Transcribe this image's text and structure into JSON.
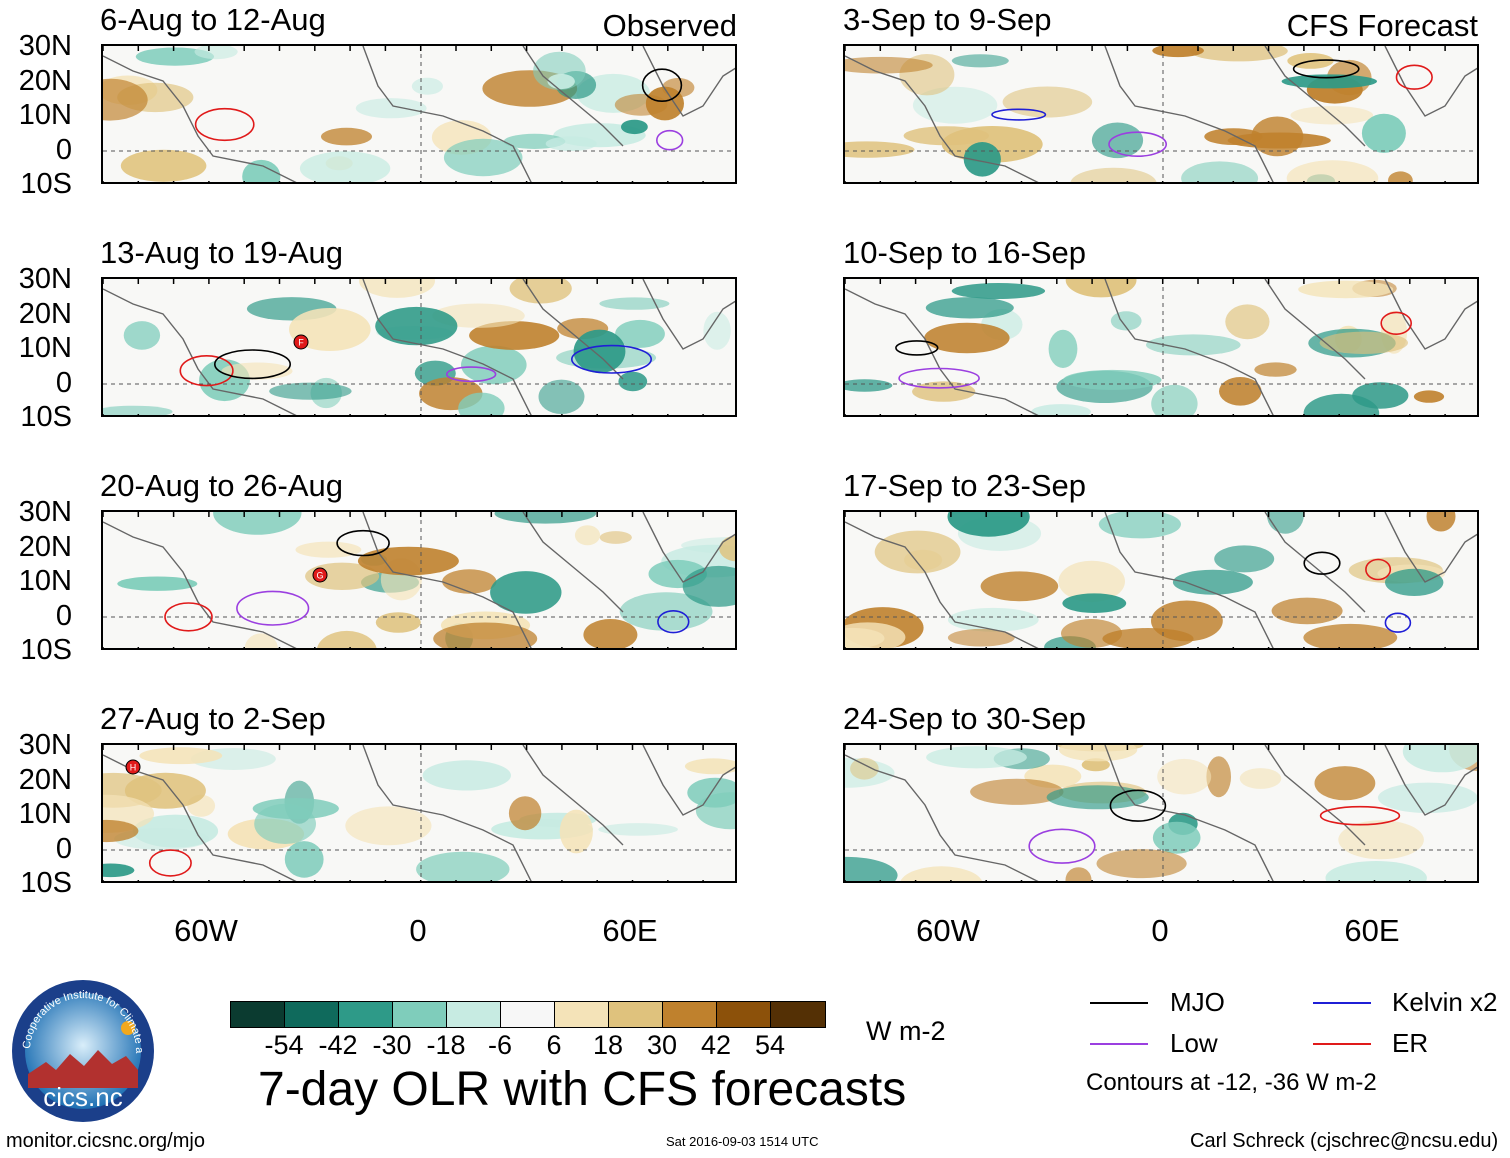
{
  "figure": {
    "title": "7-day OLR with CFS forecasts",
    "observed_label": "Observed",
    "forecast_label": "CFS Forecast",
    "lat_labels": [
      "30N",
      "20N",
      "10N",
      "0",
      "10S"
    ],
    "lon_labels": [
      "60W",
      "0",
      "60E"
    ]
  },
  "panels": [
    {
      "title": "6-Aug to 12-Aug"
    },
    {
      "title": "13-Aug to 19-Aug"
    },
    {
      "title": "20-Aug to 26-Aug"
    },
    {
      "title": "27-Aug to 2-Sep"
    },
    {
      "title": "3-Sep to 9-Sep"
    },
    {
      "title": "10-Sep to 16-Sep"
    },
    {
      "title": "17-Sep to 23-Sep"
    },
    {
      "title": "24-Sep to 30-Sep"
    }
  ],
  "storm_markers": [
    "F",
    "G",
    "H"
  ],
  "colorbar": {
    "units": "W m-2",
    "ticks": [
      "-54",
      "-42",
      "-30",
      "-18",
      "-6",
      "6",
      "18",
      "30",
      "42",
      "54"
    ],
    "colors": [
      "#0b3b30",
      "#0f6a5c",
      "#2e9a88",
      "#7fcdbb",
      "#c7ebe2",
      "#f7f7f7",
      "#f4e3b8",
      "#dfc27d",
      "#bf812d",
      "#8c510a",
      "#543005"
    ]
  },
  "legend": {
    "items": [
      {
        "label": "MJO",
        "color": "#000000"
      },
      {
        "label": "Kelvin x2",
        "color": "#1f1fd6"
      },
      {
        "label": "Low",
        "color": "#9b3fe0"
      },
      {
        "label": "ER",
        "color": "#e01a1a"
      }
    ],
    "note": "Contours at -12, -36 W m-2"
  },
  "footer": {
    "site": "monitor.cicsnc.org/mjo",
    "timestamp": "Sat 2016-09-03 1514 UTC",
    "author": "Carl Schreck (cjschrec@ncsu.edu)"
  },
  "logo": {
    "ring_text": "Cooperative Institute for Climate and Satellites",
    "name": "cics.nc"
  }
}
